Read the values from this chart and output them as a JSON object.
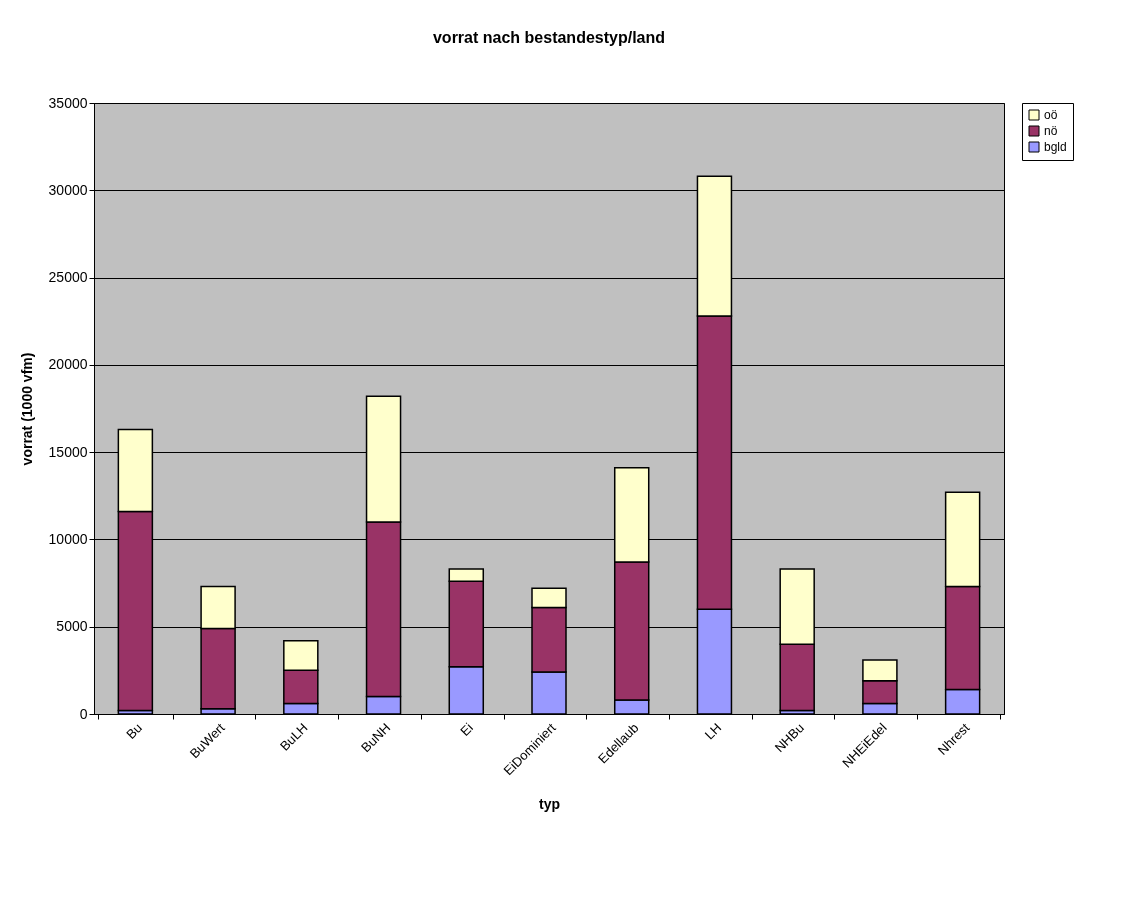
{
  "chart_data": {
    "type": "bar",
    "title": "vorrat nach bestandestyp/land",
    "xlabel": "typ",
    "ylabel": "vorrat (1000 vfm)",
    "categories": [
      "Bu",
      "BuWert",
      "BuLH",
      "BuNH",
      "Ei",
      "EiDominiert",
      "Edellaub",
      "LH",
      "NHBu",
      "NHEiEdel",
      "Nhrest"
    ],
    "stacked": true,
    "series": [
      {
        "name": "bgld",
        "color": "#9999ff",
        "values": [
          200,
          300,
          600,
          1000,
          2700,
          2400,
          800,
          6000,
          200,
          600,
          1400
        ]
      },
      {
        "name": "nö",
        "color": "#993366",
        "values": [
          11400,
          4600,
          1900,
          10000,
          4900,
          3700,
          7900,
          16800,
          3800,
          1300,
          5900
        ]
      },
      {
        "name": "oö",
        "color": "#ffffcc",
        "values": [
          4700,
          2400,
          1700,
          7200,
          700,
          1100,
          5400,
          8000,
          4300,
          1200,
          5400
        ]
      }
    ],
    "ylim": [
      0,
      35000
    ],
    "yticks": [
      0,
      5000,
      10000,
      15000,
      20000,
      25000,
      30000,
      35000
    ],
    "grid": "y",
    "legend": "right"
  }
}
